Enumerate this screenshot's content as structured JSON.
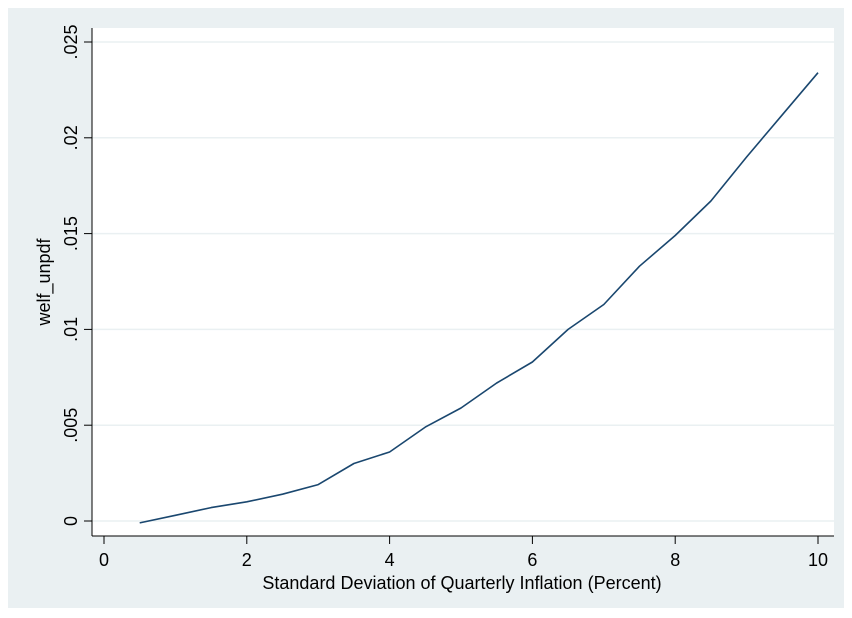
{
  "chart_data": {
    "type": "line",
    "title": "",
    "xlabel": "Standard Deviation of Quarterly Inflation (Percent)",
    "ylabel": "welf_unpdf",
    "xlim": [
      0,
      10
    ],
    "ylim": [
      0,
      0.025
    ],
    "xticks": [
      0,
      2,
      4,
      6,
      8,
      10
    ],
    "xtick_labels": [
      "0",
      "2",
      "4",
      "6",
      "8",
      "10"
    ],
    "yticks": [
      0,
      0.005,
      0.01,
      0.015,
      0.02,
      0.025
    ],
    "ytick_labels": [
      "0",
      ".005",
      ".01",
      ".015",
      ".02",
      ".025"
    ],
    "grid": true,
    "colors": {
      "outer_bg": "#eaf0f2",
      "plot_bg": "#ffffff",
      "grid": "#eaf0f2",
      "line": "#1a476f",
      "axis": "#000000"
    },
    "series": [
      {
        "x": [
          0.5,
          1,
          1.5,
          2,
          2.5,
          3,
          3.5,
          4,
          4.5,
          5,
          5.5,
          6,
          6.5,
          7,
          7.5,
          8,
          8.5,
          9,
          9.5,
          10
        ],
        "y": [
          -0.0001,
          0.0003,
          0.0007,
          0.001,
          0.0014,
          0.0019,
          0.003,
          0.0036,
          0.0049,
          0.0059,
          0.0072,
          0.0083,
          0.01,
          0.0113,
          0.0133,
          0.0149,
          0.0167,
          0.019,
          0.0212,
          0.0234
        ]
      }
    ]
  }
}
